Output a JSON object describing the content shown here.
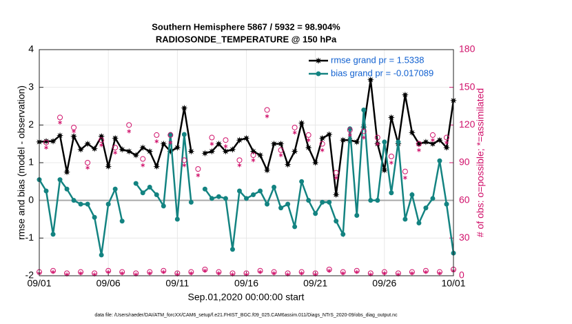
{
  "chart_data": {
    "type": "line",
    "title": "Southern Hemisphere 5867 / 5932 = 98.904%",
    "subtitle": "RADIOSONDE_TEMPERATURE @ 150 hPa",
    "x_label": "Sep.01,2020 00:00:00 start",
    "y_label": "rmse and bias (model - observation)",
    "y2_label": "# of obs: o=possible; *=assimilated",
    "footnote": "data file: /Users/raeder/DAI/ATM_forcXX/CAM6_setup/f.e21.FHIST_BGC.f09_025.CAM6assim.011/Diags_NTrS_2020-09/obs_diag_output.nc",
    "x": [
      0,
      0.5,
      1,
      1.5,
      2,
      2.5,
      3,
      3.5,
      4,
      4.5,
      5,
      5.5,
      6,
      6.5,
      7,
      7.5,
      8,
      8.5,
      9,
      9.5,
      10,
      10.5,
      11,
      11.5,
      12,
      12.5,
      13,
      13.5,
      14,
      14.5,
      15,
      15.5,
      16,
      16.5,
      17,
      17.5,
      18,
      18.5,
      19,
      19.5,
      20,
      20.5,
      21,
      21.5,
      22,
      22.5,
      23,
      23.5,
      24,
      24.5,
      25,
      25.5,
      26,
      26.5,
      27,
      27.5,
      28,
      28.5,
      29,
      29.5,
      30
    ],
    "xlim": [
      0,
      30
    ],
    "xticks": [
      {
        "value": 0,
        "label": "09/01"
      },
      {
        "value": 5,
        "label": "09/06"
      },
      {
        "value": 10,
        "label": "09/11"
      },
      {
        "value": 15,
        "label": "09/16"
      },
      {
        "value": 20,
        "label": "09/21"
      },
      {
        "value": 25,
        "label": "09/26"
      },
      {
        "value": 30,
        "label": "10/01"
      }
    ],
    "ylim": [
      -2,
      4
    ],
    "yticks": [
      -2,
      -1,
      0,
      1,
      2,
      3,
      4
    ],
    "y2lim": [
      0,
      180
    ],
    "y2ticks": [
      0,
      30,
      60,
      90,
      120,
      150,
      180
    ],
    "reference_line": 0,
    "grid": true,
    "legend": "upper right",
    "series": [
      {
        "name": "rmse grand pr = 1.5338",
        "color": "#000000",
        "marker": "star",
        "values": [
          1.55,
          1.57,
          1.57,
          1.72,
          0.75,
          1.7,
          1.35,
          1.5,
          1.37,
          1.7,
          0.9,
          1.65,
          1.35,
          1.3,
          1.2,
          1.4,
          1.3,
          0.9,
          1.5,
          1.3,
          1.4,
          2.45,
          1.3,
          null,
          1.25,
          1.3,
          1.5,
          1.3,
          1.35,
          1.6,
          1.65,
          1.3,
          1.2,
          0.8,
          1.5,
          1.5,
          0.95,
          1.3,
          2.05,
          1.4,
          1.0,
          1.65,
          1.75,
          0.15,
          1.6,
          1.6,
          1.55,
          1.95,
          3.2,
          1.5,
          0.8,
          2.2,
          1.5,
          2.8,
          1.8,
          1.5,
          1.55,
          1.5,
          1.6,
          1.4,
          2.65
        ]
      },
      {
        "name": "bias grand pr = -0.017089",
        "color": "#138381",
        "marker": "circle",
        "values": [
          0.55,
          0.25,
          -0.9,
          0.55,
          0.3,
          0.0,
          -0.1,
          -0.1,
          -0.45,
          -1.45,
          -0.1,
          0.3,
          -0.55,
          null,
          0.45,
          0.2,
          0.35,
          0.15,
          -0.15,
          1.75,
          -0.5,
          1.75,
          -0.05,
          null,
          0.3,
          0.05,
          0.1,
          0.05,
          -1.3,
          0.25,
          0.05,
          0.15,
          0.25,
          -0.1,
          0.35,
          -0.2,
          -0.1,
          -0.7,
          0.5,
          0.0,
          -0.35,
          -0.05,
          -0.05,
          -0.55,
          -0.9,
          1.9,
          -0.4,
          2.4,
          0.0,
          0.0,
          1.55,
          0.2,
          1.55,
          -0.5,
          0.15,
          -0.6,
          -0.2,
          0.05,
          1.05,
          -0.1,
          -1.4
        ]
      },
      {
        "name": "possible",
        "color": "#d0106a",
        "marker": "open-circle",
        "axis": "y2",
        "values": [
          3,
          106,
          4,
          126,
          2,
          118,
          3,
          90,
          2,
          108,
          4,
          102,
          3,
          120,
          2,
          93,
          3,
          112,
          4,
          112,
          2,
          92,
          3,
          85,
          5,
          110,
          3,
          108,
          2,
          92,
          2,
          96,
          4,
          132,
          3,
          100,
          2,
          118,
          3,
          112,
          2,
          105,
          5,
          82,
          3,
          116,
          4,
          115,
          2,
          110,
          3,
          95,
          2,
          83,
          3,
          105,
          4,
          112,
          3,
          110,
          5
        ]
      },
      {
        "name": "assimilated",
        "color": "#d0106a",
        "marker": "asterisk",
        "axis": "y2",
        "values": [
          2,
          102,
          3,
          122,
          1,
          115,
          2,
          86,
          1,
          104,
          3,
          98,
          2,
          115,
          1,
          88,
          2,
          107,
          3,
          106,
          1,
          88,
          2,
          80,
          4,
          105,
          2,
          103,
          1,
          88,
          1,
          92,
          3,
          127,
          2,
          96,
          1,
          114,
          2,
          108,
          1,
          100,
          4,
          78,
          2,
          112,
          3,
          110,
          1,
          105,
          2,
          90,
          1,
          78,
          2,
          100,
          3,
          108,
          2,
          106,
          4
        ]
      }
    ]
  }
}
